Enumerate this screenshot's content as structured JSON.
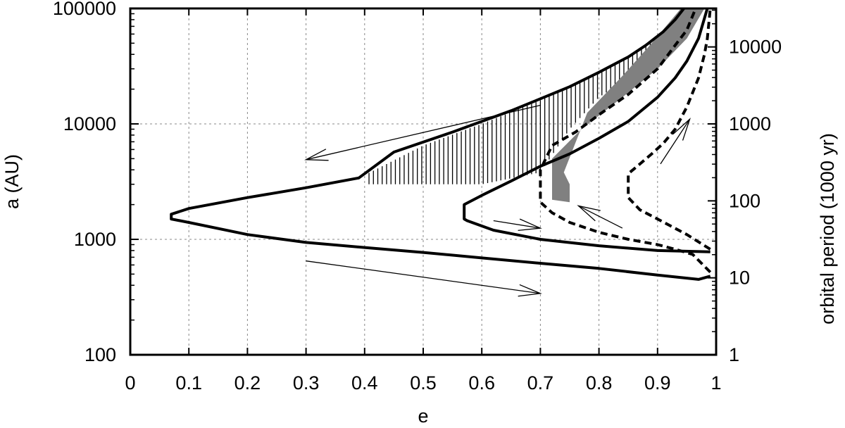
{
  "chart_data": {
    "type": "line",
    "title": "",
    "xlabel": "e",
    "ylabel": "a (AU)",
    "y2label": "orbital period (1000 yr)",
    "xlim": [
      0,
      1
    ],
    "ylim": [
      100,
      100000
    ],
    "yscale": "log",
    "y2lim": [
      1,
      31623
    ],
    "y2scale": "log",
    "grid": true,
    "legend": "none",
    "x_ticks": [
      0,
      0.1,
      0.2,
      0.3,
      0.4,
      0.5,
      0.6,
      0.7,
      0.8,
      0.9,
      1
    ],
    "x_tick_labels": [
      "0",
      "0.1",
      "0.2",
      "0.3",
      "0.4",
      "0.5",
      "0.6",
      "0.7",
      "0.8",
      "0.9",
      "1"
    ],
    "y_ticks": [
      100,
      1000,
      10000,
      100000
    ],
    "y_tick_labels": [
      "100",
      "1000",
      "10000",
      "100000"
    ],
    "y2_ticks": [
      1,
      10,
      100,
      1000,
      10000
    ],
    "y2_tick_labels": [
      "1",
      "10",
      "100",
      "1000",
      "10000"
    ],
    "series": [
      {
        "style": "solid",
        "x": [
          0.99,
          0.97,
          0.9,
          0.8,
          0.7,
          0.6,
          0.5,
          0.4,
          0.3,
          0.2,
          0.1,
          0.07,
          0.07,
          0.1,
          0.2,
          0.3,
          0.39,
          0.45,
          0.55,
          0.65,
          0.7,
          0.75,
          0.8,
          0.85,
          0.88,
          0.91,
          0.93,
          0.945
        ],
        "y": [
          480,
          450,
          490,
          560,
          620,
          690,
          770,
          850,
          940,
          1100,
          1400,
          1500,
          1650,
          1850,
          2300,
          2800,
          3400,
          5700,
          8500,
          13000,
          16500,
          21000,
          28000,
          38000,
          48000,
          63000,
          80000,
          100000
        ]
      },
      {
        "style": "solid",
        "x": [
          0.99,
          0.9,
          0.8,
          0.7,
          0.62,
          0.575,
          0.57,
          0.57,
          0.6,
          0.65,
          0.7,
          0.75,
          0.8,
          0.85,
          0.9,
          0.93,
          0.95,
          0.97,
          0.985
        ],
        "y": [
          780,
          800,
          880,
          1000,
          1200,
          1450,
          1500,
          2000,
          2400,
          3200,
          4300,
          5500,
          7500,
          10500,
          17000,
          25000,
          35000,
          55000,
          100000
        ]
      },
      {
        "style": "dashed",
        "x": [
          0.99,
          0.96,
          0.93,
          0.9,
          0.85,
          0.8,
          0.75,
          0.72,
          0.7,
          0.7,
          0.72,
          0.76,
          0.8,
          0.85,
          0.9,
          0.93,
          0.95,
          0.965
        ],
        "y": [
          520,
          740,
          820,
          900,
          1000,
          1150,
          1400,
          1700,
          2100,
          4000,
          6500,
          8500,
          12000,
          18000,
          30000,
          48000,
          65000,
          100000
        ]
      },
      {
        "style": "dashed",
        "x": [
          0.99,
          0.95,
          0.9,
          0.87,
          0.85,
          0.85,
          0.87,
          0.89,
          0.91,
          0.93,
          0.95,
          0.97,
          0.98,
          0.985,
          0.99
        ],
        "y": [
          820,
          1100,
          1500,
          1800,
          2300,
          3700,
          4500,
          5500,
          6800,
          9000,
          14000,
          25000,
          40000,
          55000,
          100000
        ]
      }
    ],
    "shaded_region": {
      "fill": "#808080",
      "x": [
        0.72,
        0.77,
        0.84,
        0.9,
        0.95,
        0.98,
        0.94,
        0.89,
        0.84,
        0.78,
        0.74,
        0.75,
        0.75,
        0.72
      ],
      "y": [
        5000,
        9000,
        17000,
        30000,
        55000,
        100000,
        100000,
        50000,
        26000,
        12500,
        3800,
        3000,
        2100,
        2200
      ]
    },
    "hatched_region": {
      "upper_x": [
        0.4,
        0.5,
        0.6,
        0.7,
        0.75,
        0.8,
        0.85,
        0.88,
        0.91,
        0.93
      ],
      "upper_y": [
        3600,
        6500,
        10000,
        16000,
        21000,
        28000,
        38000,
        48000,
        63000,
        80000
      ],
      "lower_x": [
        0.4,
        0.5,
        0.6,
        0.7,
        0.75,
        0.8,
        0.85,
        0.88,
        0.91,
        0.93
      ],
      "lower_y": [
        3000,
        3000,
        3000,
        3800,
        9000,
        17000,
        25000,
        33000,
        48000,
        65000
      ]
    },
    "arrows": [
      {
        "x1": 0.7,
        "y1": 14500,
        "x2": 0.3,
        "y2": 4900
      },
      {
        "x1": 0.3,
        "y1": 650,
        "x2": 0.7,
        "y2": 340
      },
      {
        "x1": 0.62,
        "y1": 1450,
        "x2": 0.7,
        "y2": 1250
      },
      {
        "x1": 0.84,
        "y1": 1250,
        "x2": 0.765,
        "y2": 1950
      },
      {
        "x1": 0.905,
        "y1": 4500,
        "x2": 0.955,
        "y2": 11000
      }
    ]
  }
}
